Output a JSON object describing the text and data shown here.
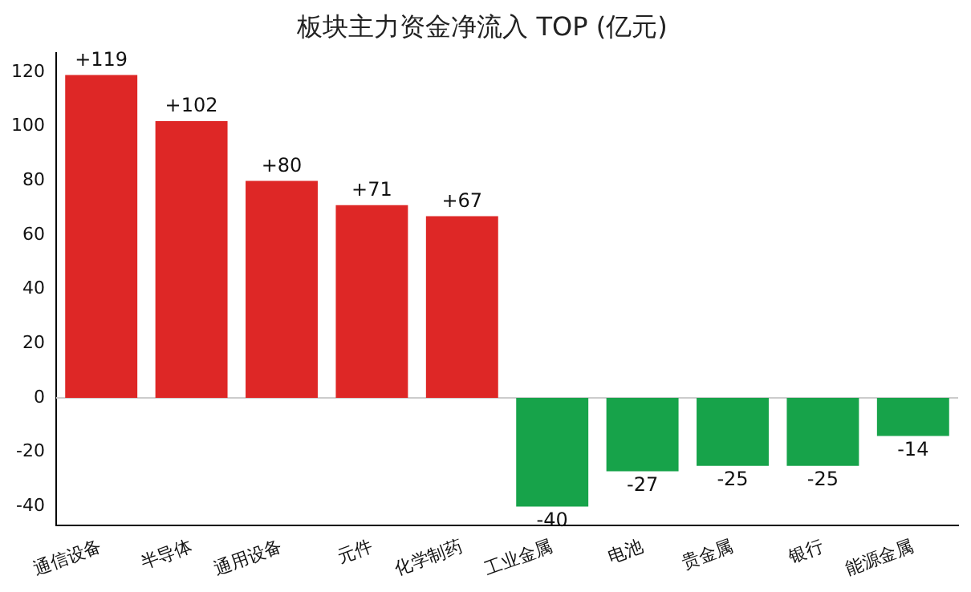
{
  "chart_data": {
    "type": "bar",
    "title": "板块主力资金净流入 TOP (亿元)",
    "categories": [
      "通信设备",
      "半导体",
      "通用设备",
      "元件",
      "化学制药",
      "工业金属",
      "电池",
      "贵金属",
      "银行",
      "能源金属"
    ],
    "values": [
      119,
      102,
      80,
      71,
      67,
      -40,
      -27,
      -25,
      -25,
      -14
    ],
    "colors": [
      "#de2726",
      "#de2726",
      "#de2726",
      "#de2726",
      "#de2726",
      "#17a34a",
      "#17a34a",
      "#17a34a",
      "#17a34a",
      "#17a34a"
    ],
    "value_labels": [
      "+119",
      "+102",
      "+80",
      "+71",
      "+67",
      "-40",
      "-27",
      "-25",
      "-25",
      "-14"
    ],
    "ylim": [
      -47,
      127
    ],
    "yticks": [
      -40,
      -20,
      0,
      20,
      40,
      60,
      80,
      100,
      120
    ],
    "ref_lines": [
      {
        "axis": "y",
        "value": 0,
        "color": "#cccccc"
      }
    ],
    "grid": false,
    "legend": false
  }
}
